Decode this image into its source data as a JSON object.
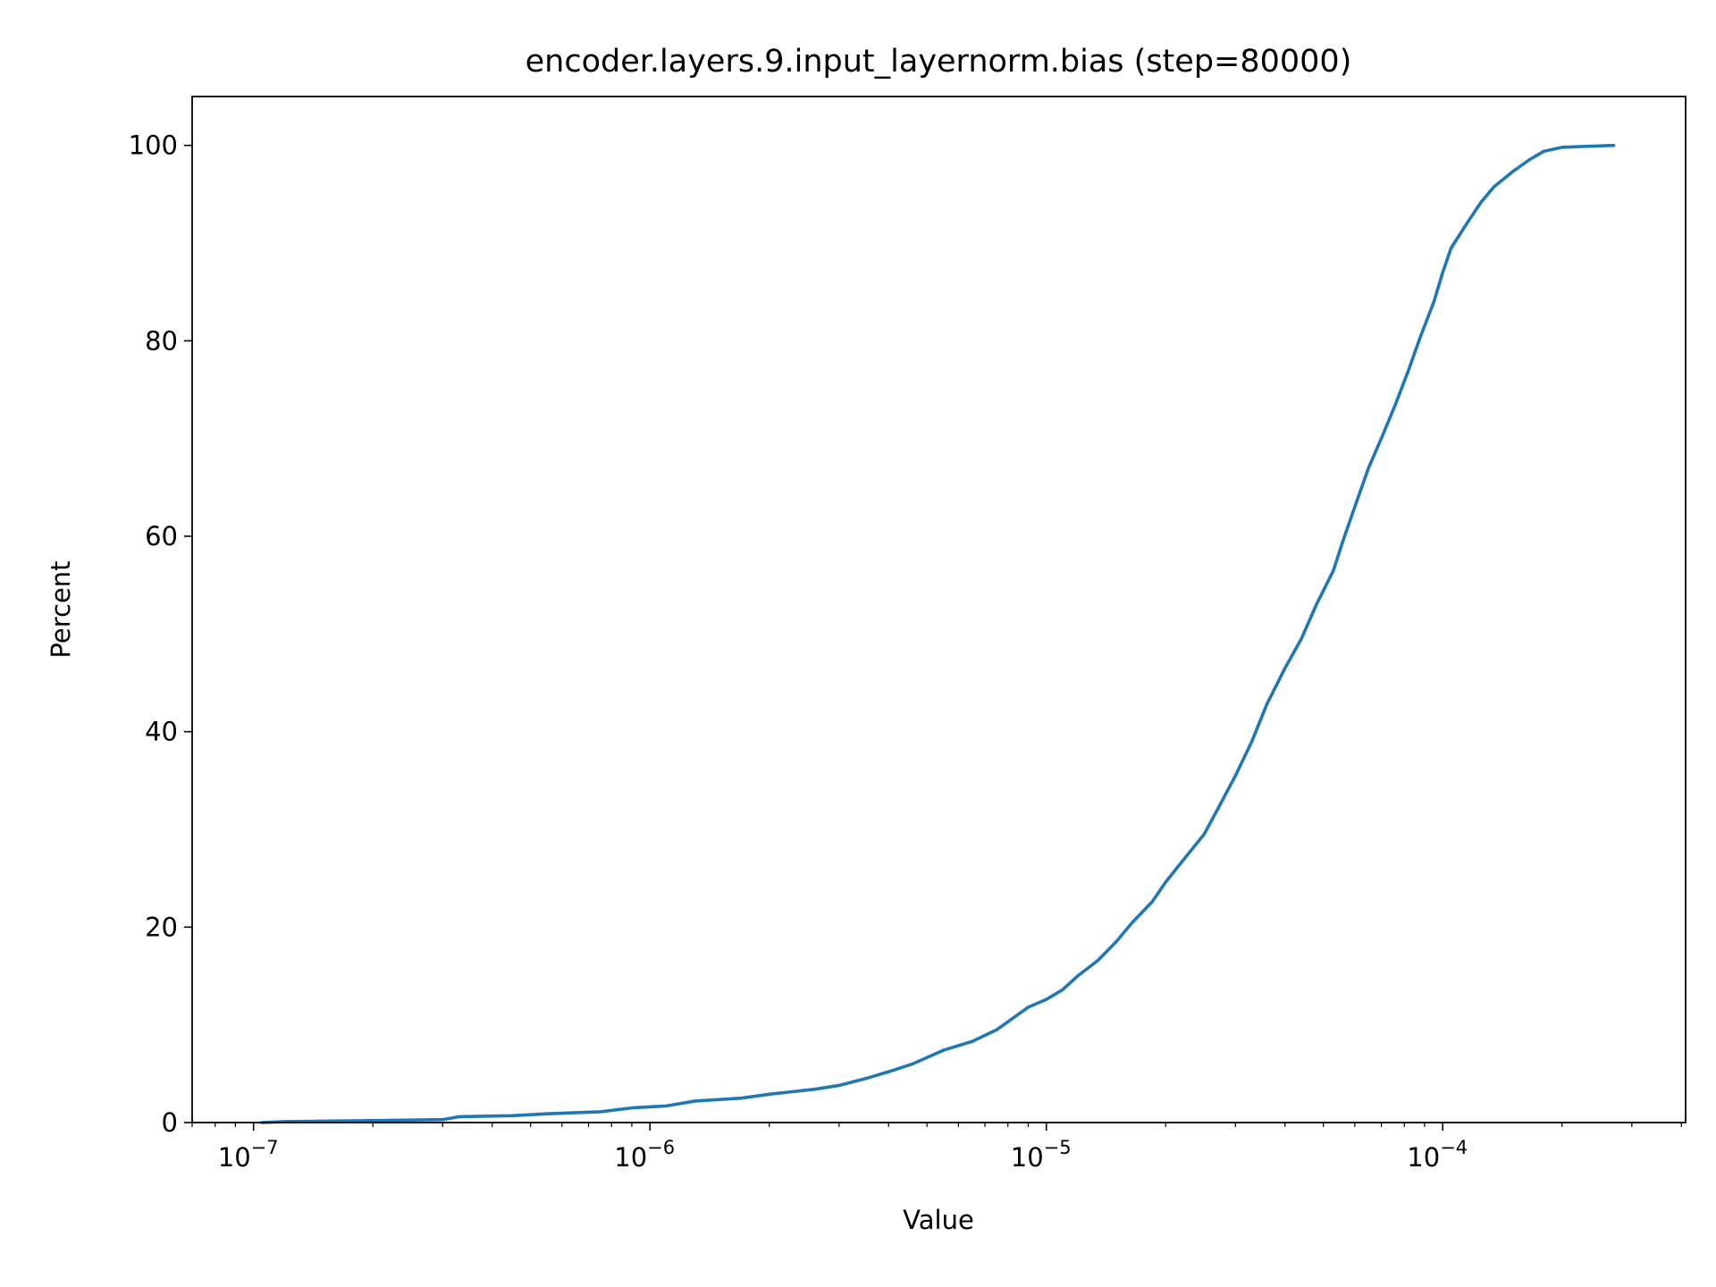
{
  "chart_data": {
    "type": "line",
    "title": "encoder.layers.9.input_layernorm.bias (step=80000)",
    "xlabel": "Value",
    "ylabel": "Percent",
    "x_scale": "log",
    "xlim": [
      7e-08,
      0.00041
    ],
    "ylim": [
      0,
      105
    ],
    "grid": false,
    "legend": "none",
    "x_major_ticks": [
      {
        "value": 1e-07,
        "base": "10",
        "exp": "−7"
      },
      {
        "value": 1e-06,
        "base": "10",
        "exp": "−6"
      },
      {
        "value": 1e-05,
        "base": "10",
        "exp": "−5"
      },
      {
        "value": 0.0001,
        "base": "10",
        "exp": "−4"
      }
    ],
    "y_ticks": [
      {
        "value": 0,
        "label": "0"
      },
      {
        "value": 20,
        "label": "20"
      },
      {
        "value": 40,
        "label": "40"
      },
      {
        "value": 60,
        "label": "60"
      },
      {
        "value": 80,
        "label": "80"
      },
      {
        "value": 100,
        "label": "100"
      }
    ],
    "series": [
      {
        "color": "#1f77b4",
        "points": [
          [
            1.05e-07,
            0.0
          ],
          [
            1.2e-07,
            0.1
          ],
          [
            2e-07,
            0.2
          ],
          [
            3e-07,
            0.3
          ],
          [
            3.3e-07,
            0.6
          ],
          [
            4.5e-07,
            0.7
          ],
          [
            5.5e-07,
            0.9
          ],
          [
            7.5e-07,
            1.1
          ],
          [
            9e-07,
            1.5
          ],
          [
            1.1e-06,
            1.7
          ],
          [
            1.3e-06,
            2.2
          ],
          [
            1.7e-06,
            2.5
          ],
          [
            2e-06,
            2.9
          ],
          [
            2.6e-06,
            3.4
          ],
          [
            3e-06,
            3.8
          ],
          [
            3.5e-06,
            4.5
          ],
          [
            4e-06,
            5.2
          ],
          [
            4.6e-06,
            6.0
          ],
          [
            5.5e-06,
            7.4
          ],
          [
            6.5e-06,
            8.3
          ],
          [
            7.5e-06,
            9.5
          ],
          [
            9e-06,
            11.8
          ],
          [
            1e-05,
            12.6
          ],
          [
            1.1e-05,
            13.6
          ],
          [
            1.2e-05,
            15.0
          ],
          [
            1.35e-05,
            16.6
          ],
          [
            1.5e-05,
            18.5
          ],
          [
            1.65e-05,
            20.5
          ],
          [
            1.85e-05,
            22.6
          ],
          [
            2e-05,
            24.6
          ],
          [
            2.25e-05,
            27.2
          ],
          [
            2.5e-05,
            29.5
          ],
          [
            2.7e-05,
            32.0
          ],
          [
            3e-05,
            35.5
          ],
          [
            3.3e-05,
            39.0
          ],
          [
            3.6e-05,
            42.8
          ],
          [
            4e-05,
            46.5
          ],
          [
            4.4e-05,
            49.5
          ],
          [
            4.8e-05,
            53.0
          ],
          [
            5.3e-05,
            56.5
          ],
          [
            5.6e-05,
            59.5
          ],
          [
            6e-05,
            63.0
          ],
          [
            6.5e-05,
            67.0
          ],
          [
            7e-05,
            70.0
          ],
          [
            7.6e-05,
            73.5
          ],
          [
            8.2e-05,
            77.0
          ],
          [
            8.8e-05,
            80.5
          ],
          [
            9.5e-05,
            84.0
          ],
          [
            0.0001,
            87.0
          ],
          [
            0.000105,
            89.5
          ],
          [
            0.000115,
            92.0
          ],
          [
            0.000125,
            94.2
          ],
          [
            0.000135,
            95.8
          ],
          [
            0.00015,
            97.3
          ],
          [
            0.000165,
            98.5
          ],
          [
            0.00018,
            99.4
          ],
          [
            0.0002,
            99.8
          ],
          [
            0.00023,
            99.9
          ],
          [
            0.00027,
            100.0
          ]
        ]
      }
    ]
  }
}
